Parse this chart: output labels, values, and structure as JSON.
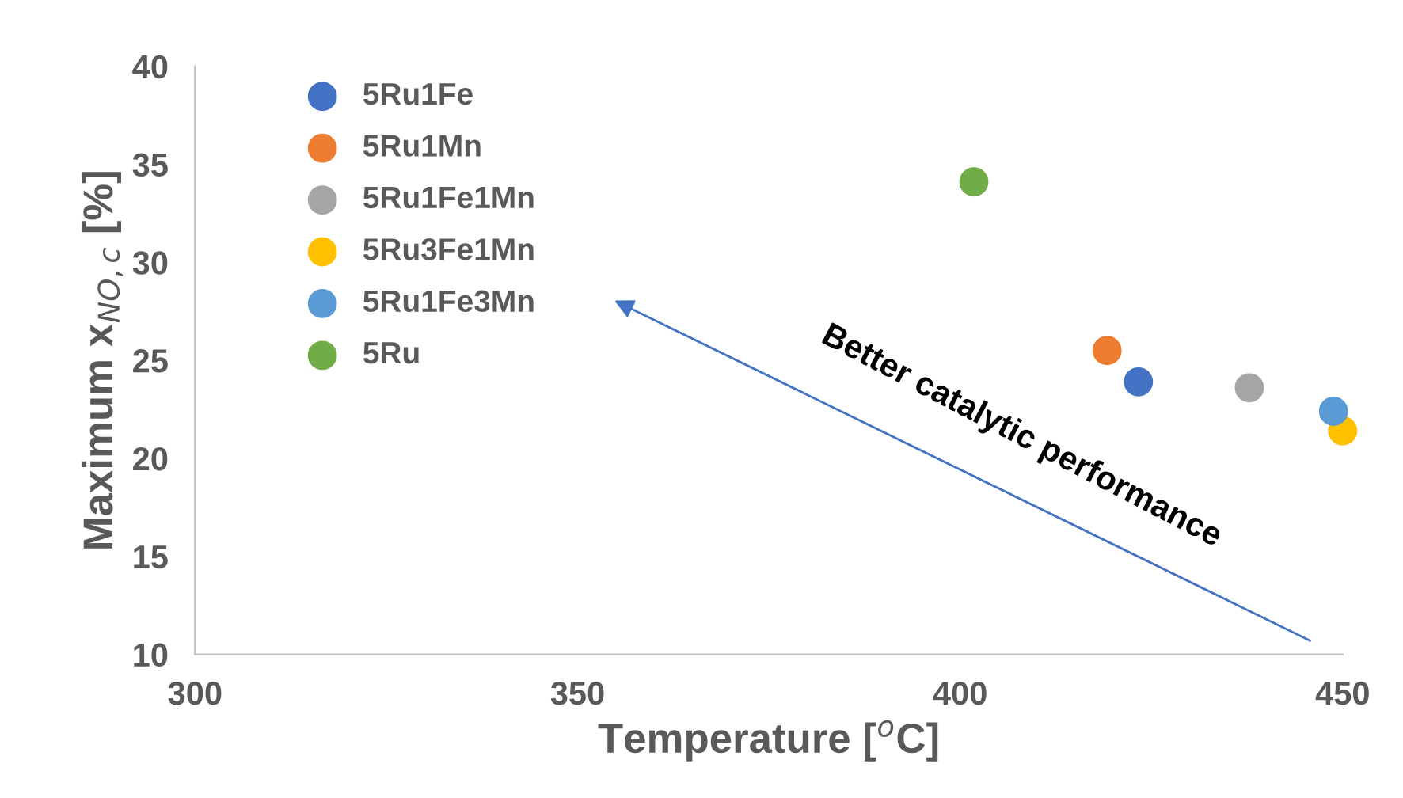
{
  "chart_data": {
    "type": "scatter",
    "xlabel": "Temperature [$^{o}$C]",
    "ylabel": "Maximum x$_{NO,c}$ [%]",
    "xlim": [
      300,
      450
    ],
    "xticks": [
      300,
      350,
      400,
      450
    ],
    "ylim": [
      10,
      40
    ],
    "yticks": [
      10,
      15,
      20,
      25,
      30,
      35,
      40
    ],
    "grid": false,
    "legend": "top left",
    "marker": "circle",
    "annotations": [
      "Better catalytic performance"
    ],
    "series": [
      {
        "name": "5Ru1Fe",
        "color": "#4472c4",
        "x": [
          423.3
        ],
        "values": [
          23.9
        ]
      },
      {
        "name": "5Ru1Mn",
        "color": "#ed7d31",
        "x": [
          419.2
        ],
        "values": [
          25.5
        ]
      },
      {
        "name": "5Ru1Fe1Mn",
        "color": "#a5a5a5",
        "x": [
          437.8
        ],
        "values": [
          23.6
        ]
      },
      {
        "name": "5Ru3Fe1Mn",
        "color": "#ffc000",
        "x": [
          450
        ],
        "values": [
          21.4
        ]
      },
      {
        "name": "5Ru1Fe3Mn",
        "color": "#5b9bd5",
        "x": [
          448.8
        ],
        "values": [
          22.4
        ]
      },
      {
        "name": "5Ru",
        "color": "#70ad47",
        "x": [
          401.8
        ],
        "values": [
          34.1
        ]
      }
    ]
  }
}
